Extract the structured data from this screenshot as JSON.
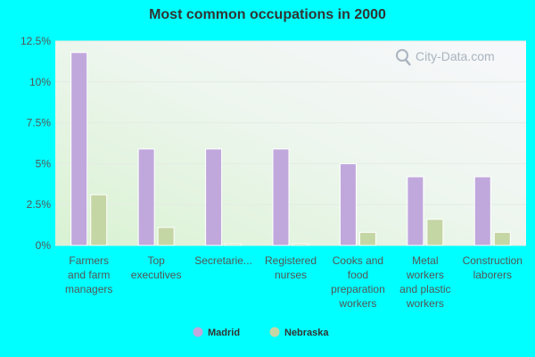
{
  "chart_data": {
    "type": "bar",
    "title": "Most common occupations in 2000",
    "categories": [
      [
        "Farmers",
        "and farm",
        "managers"
      ],
      [
        "Top",
        "executives"
      ],
      [
        "Secretarie..."
      ],
      [
        "Registered",
        "nurses"
      ],
      [
        "Cooks and",
        "food",
        "preparation",
        "workers"
      ],
      [
        "Metal",
        "workers",
        "and plastic",
        "workers"
      ],
      [
        "Construction",
        "laborers"
      ]
    ],
    "series": [
      {
        "name": "Madrid",
        "color": "#c0a8dc",
        "values": [
          11.8,
          5.9,
          5.9,
          5.9,
          5.0,
          4.2,
          4.2
        ]
      },
      {
        "name": "Nebraska",
        "color": "#c5d6a5",
        "values": [
          3.1,
          1.1,
          0.1,
          0.1,
          0.8,
          1.6,
          0.8
        ]
      }
    ],
    "ylim": [
      0,
      12.5
    ],
    "yticks": [
      0,
      2.5,
      5,
      7.5,
      10,
      12.5
    ],
    "ytick_labels": [
      "0%",
      "2.5%",
      "5%",
      "7.5%",
      "10%",
      "12.5%"
    ],
    "grid": true,
    "legend_position": "bottom"
  },
  "watermark": {
    "text": "City-Data.com",
    "icon": "search-magnifier-icon"
  }
}
